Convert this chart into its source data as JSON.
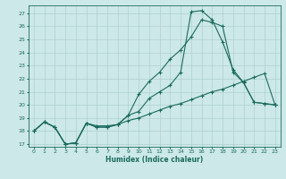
{
  "title": "",
  "xlabel": "Humidex (Indice chaleur)",
  "xlim": [
    -0.5,
    23.5
  ],
  "ylim": [
    16.8,
    27.6
  ],
  "yticks": [
    17,
    18,
    19,
    20,
    21,
    22,
    23,
    24,
    25,
    26,
    27
  ],
  "xticks": [
    0,
    1,
    2,
    3,
    4,
    5,
    6,
    7,
    8,
    9,
    10,
    11,
    12,
    13,
    14,
    15,
    16,
    17,
    18,
    19,
    20,
    21,
    22,
    23
  ],
  "background_color": "#cde8e8",
  "grid_color": "#aed0d0",
  "line_color": "#1a6b5e",
  "line1_x": [
    0,
    1,
    2,
    3,
    4,
    5,
    6,
    7,
    8,
    9,
    10,
    11,
    12,
    13,
    14,
    15,
    16,
    17,
    18,
    19,
    20,
    21,
    22,
    23
  ],
  "line1_y": [
    18.0,
    18.7,
    18.3,
    17.0,
    17.1,
    18.6,
    18.3,
    18.3,
    18.5,
    19.2,
    19.5,
    20.5,
    21.0,
    21.5,
    22.5,
    27.1,
    27.2,
    26.5,
    24.8,
    22.7,
    21.7,
    20.2,
    20.1,
    20.0
  ],
  "line2_x": [
    0,
    1,
    2,
    3,
    4,
    5,
    6,
    7,
    8,
    9,
    10,
    11,
    12,
    13,
    14,
    15,
    16,
    17,
    18,
    19,
    20,
    21,
    22,
    23
  ],
  "line2_y": [
    18.0,
    18.7,
    18.3,
    17.0,
    17.1,
    18.6,
    18.3,
    18.3,
    18.5,
    19.2,
    20.8,
    21.8,
    22.5,
    23.5,
    24.2,
    25.2,
    26.5,
    26.3,
    26.0,
    22.5,
    21.7,
    20.2,
    20.1,
    20.0
  ],
  "line3_x": [
    0,
    1,
    2,
    3,
    4,
    5,
    6,
    7,
    8,
    9,
    10,
    11,
    12,
    13,
    14,
    15,
    16,
    17,
    18,
    19,
    20,
    21,
    22,
    23
  ],
  "line3_y": [
    18.0,
    18.7,
    18.3,
    17.0,
    17.1,
    18.6,
    18.4,
    18.4,
    18.5,
    18.8,
    19.0,
    19.3,
    19.6,
    19.9,
    20.1,
    20.4,
    20.7,
    21.0,
    21.2,
    21.5,
    21.8,
    22.1,
    22.4,
    20.0
  ]
}
